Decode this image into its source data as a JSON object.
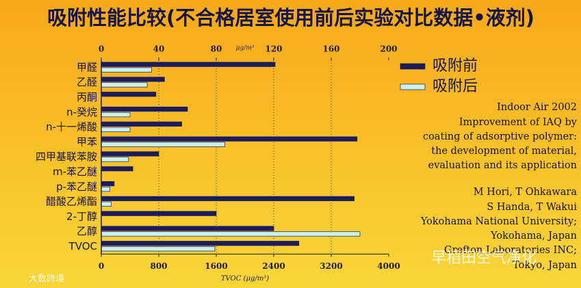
{
  "title": "吸附性能比较(不合格居室使用前后实验对比数据•液剂)",
  "chart_data": [
    {
      "type": "bar",
      "orientation": "horizontal",
      "axis_position": "top",
      "xlabel": "μg/m³",
      "categories": [
        "甲醛",
        "乙醛",
        "丙酮",
        "n-癸烷",
        "n-十一烯酸",
        "甲苯",
        "四甲基联苯胺",
        "m-苯乙醚",
        "p-苯乙醚",
        "醋酸乙烯酯",
        "2-丁醇",
        "乙醇"
      ],
      "series": [
        {
          "name": "吸附前",
          "color": "#1b1b5e",
          "values": [
            121,
            44,
            38,
            60,
            56,
            178,
            40,
            22,
            9,
            176,
            80,
            120
          ]
        },
        {
          "name": "吸附后",
          "color": "#c9f3f0",
          "values": [
            35,
            32,
            null,
            20,
            20,
            86,
            19,
            null,
            6,
            7,
            null,
            180
          ]
        }
      ],
      "xlim": [
        0,
        200
      ],
      "xticks": [
        0,
        40,
        80,
        120,
        160,
        200
      ],
      "grid": true,
      "legend": "right"
    },
    {
      "type": "bar",
      "orientation": "horizontal",
      "axis_position": "bottom",
      "xlabel": "TVOC (μg/m³)",
      "categories": [
        "TVOC"
      ],
      "series": [
        {
          "color": "#1b1b5e",
          "values": [
            2750
          ]
        },
        {
          "color": "#c9f3f0",
          "values": [
            1580
          ]
        }
      ],
      "xlim": [
        0,
        4000
      ],
      "xticks": [
        0,
        800,
        1600,
        2400,
        3200,
        4000
      ],
      "grid": false
    }
  ],
  "annotation_lines": [
    "Indoor Air 2002",
    "Improvement of IAQ by",
    "coating of adsorptive polymer:",
    "the development of material,",
    "evaluation and its application",
    "M Hori, T Ohkawara",
    "S Handa, T Wakui",
    "Yokohama National University;",
    "Yokohama, Japan",
    "Grefton Laboratories INC;",
    "Tokyo, Japan"
  ],
  "watermarks": [
    "早稻田空气净化",
    "大数跨境"
  ]
}
